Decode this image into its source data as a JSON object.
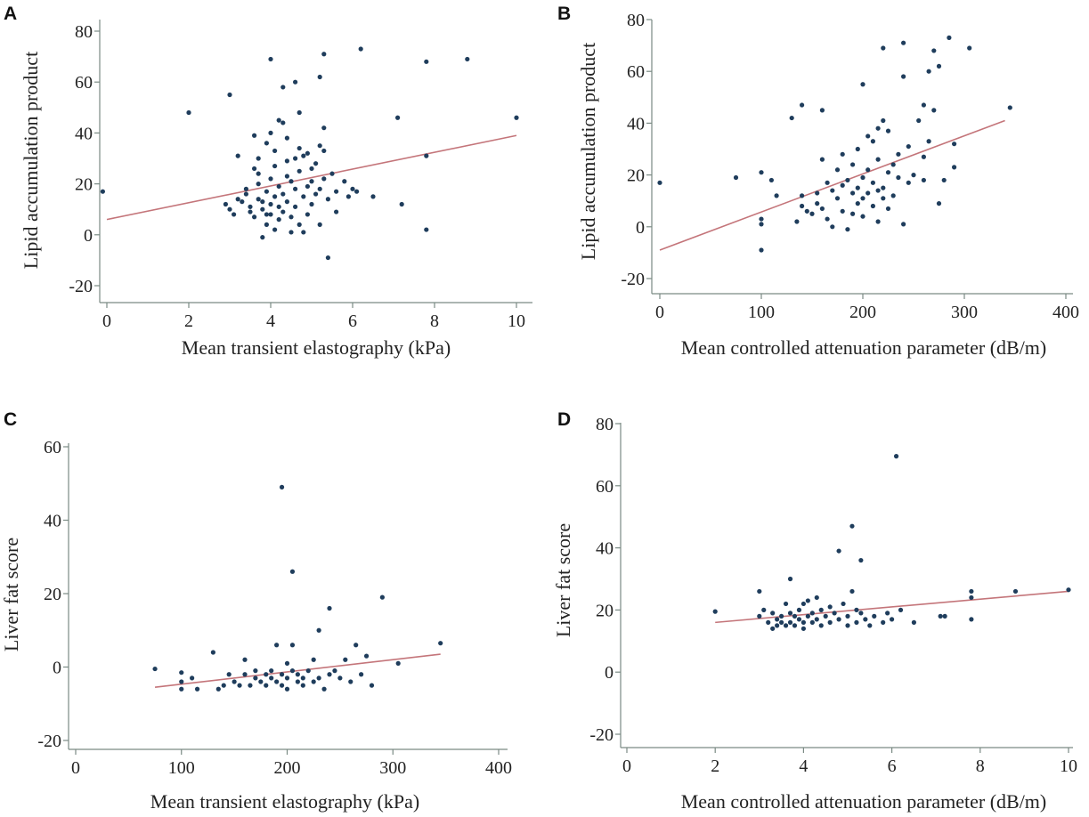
{
  "chart_data": [
    {
      "type": "scatter",
      "panel": "A",
      "xlabel": "Mean transient elastography (kPa)",
      "ylabel": "Lipid accumulation product",
      "xlim": [
        -0.3,
        10.3
      ],
      "ylim": [
        -23,
        84
      ],
      "xticks": [
        0,
        2,
        4,
        6,
        8,
        10
      ],
      "yticks": [
        80,
        60,
        40,
        20,
        0,
        -20
      ],
      "tick_labels_x": [
        "0",
        "2",
        "4",
        "6",
        "8",
        "10"
      ],
      "tick_labels_y": [
        "80",
        "60",
        "40",
        "20",
        "0",
        "-20"
      ],
      "fit_line": [
        [
          0,
          6
        ],
        [
          10,
          39
        ]
      ],
      "points": [
        [
          -0.1,
          17
        ],
        [
          2,
          48
        ],
        [
          3,
          55
        ],
        [
          3.2,
          31
        ],
        [
          2.9,
          12
        ],
        [
          3.0,
          10
        ],
        [
          3.1,
          8
        ],
        [
          3.2,
          14
        ],
        [
          3.3,
          13
        ],
        [
          3.4,
          16
        ],
        [
          3.4,
          18
        ],
        [
          3.5,
          11
        ],
        [
          3.5,
          9
        ],
        [
          3.6,
          39
        ],
        [
          3.6,
          26
        ],
        [
          3.6,
          7
        ],
        [
          3.7,
          30
        ],
        [
          3.7,
          24
        ],
        [
          3.7,
          20
        ],
        [
          3.7,
          14
        ],
        [
          3.8,
          -1
        ],
        [
          3.8,
          13
        ],
        [
          3.8,
          10
        ],
        [
          3.9,
          36
        ],
        [
          3.9,
          17
        ],
        [
          3.9,
          8
        ],
        [
          3.9,
          4
        ],
        [
          4.0,
          69
        ],
        [
          4.0,
          40
        ],
        [
          4.0,
          22
        ],
        [
          4.0,
          12
        ],
        [
          4.0,
          8
        ],
        [
          4.1,
          33
        ],
        [
          4.1,
          27
        ],
        [
          4.1,
          15
        ],
        [
          4.1,
          2
        ],
        [
          4.2,
          45
        ],
        [
          4.2,
          19
        ],
        [
          4.2,
          11
        ],
        [
          4.2,
          6
        ],
        [
          4.3,
          58
        ],
        [
          4.3,
          44
        ],
        [
          4.3,
          16
        ],
        [
          4.3,
          9
        ],
        [
          4.4,
          38
        ],
        [
          4.4,
          29
        ],
        [
          4.4,
          23
        ],
        [
          4.4,
          13
        ],
        [
          4.5,
          21
        ],
        [
          4.5,
          7
        ],
        [
          4.5,
          1
        ],
        [
          4.6,
          60
        ],
        [
          4.6,
          30
        ],
        [
          4.6,
          18
        ],
        [
          4.6,
          11
        ],
        [
          4.7,
          48
        ],
        [
          4.7,
          34
        ],
        [
          4.7,
          25
        ],
        [
          4.7,
          4
        ],
        [
          4.8,
          31
        ],
        [
          4.8,
          15
        ],
        [
          4.8,
          1
        ],
        [
          4.9,
          32
        ],
        [
          4.9,
          19
        ],
        [
          4.9,
          8
        ],
        [
          5.0,
          21
        ],
        [
          5.0,
          12
        ],
        [
          5.0,
          26
        ],
        [
          5.1,
          28
        ],
        [
          5.1,
          16
        ],
        [
          5.2,
          62
        ],
        [
          5.2,
          35
        ],
        [
          5.2,
          18
        ],
        [
          5.2,
          4
        ],
        [
          5.3,
          71
        ],
        [
          5.3,
          33
        ],
        [
          5.3,
          22
        ],
        [
          5.3,
          42
        ],
        [
          5.4,
          -9
        ],
        [
          5.4,
          14
        ],
        [
          5.5,
          24
        ],
        [
          5.6,
          17
        ],
        [
          5.6,
          9
        ],
        [
          5.8,
          21
        ],
        [
          5.9,
          15
        ],
        [
          6.0,
          18
        ],
        [
          6.1,
          17
        ],
        [
          6.2,
          73
        ],
        [
          6.5,
          15
        ],
        [
          7.1,
          46
        ],
        [
          7.2,
          12
        ],
        [
          7.8,
          68
        ],
        [
          7.8,
          31
        ],
        [
          7.8,
          2
        ],
        [
          8.8,
          69
        ],
        [
          10,
          46
        ]
      ]
    },
    {
      "type": "scatter",
      "panel": "B",
      "xlabel": "Mean controlled attenuation parameter (dB/m)",
      "ylabel": "Lipid accumulation product",
      "xlim": [
        -10,
        410
      ],
      "ylim": [
        -23,
        84
      ],
      "xticks": [
        0,
        100,
        200,
        300,
        400
      ],
      "yticks": [
        80,
        60,
        40,
        20,
        0,
        -20
      ],
      "tick_labels_x": [
        "0",
        "100",
        "200",
        "300",
        "400"
      ],
      "tick_labels_y": [
        "80",
        "60",
        "40",
        "20",
        "0",
        "-20"
      ],
      "fit_line": [
        [
          0,
          -9
        ],
        [
          340,
          41
        ]
      ],
      "points": [
        [
          0,
          17
        ],
        [
          75,
          19
        ],
        [
          100,
          -9
        ],
        [
          100,
          3
        ],
        [
          100,
          1
        ],
        [
          100,
          21
        ],
        [
          110,
          18
        ],
        [
          115,
          12
        ],
        [
          130,
          42
        ],
        [
          135,
          2
        ],
        [
          140,
          47
        ],
        [
          140,
          8
        ],
        [
          140,
          12
        ],
        [
          145,
          6
        ],
        [
          150,
          5
        ],
        [
          155,
          13
        ],
        [
          155,
          9
        ],
        [
          160,
          26
        ],
        [
          160,
          45
        ],
        [
          160,
          7
        ],
        [
          165,
          17
        ],
        [
          165,
          3
        ],
        [
          170,
          14
        ],
        [
          170,
          0
        ],
        [
          175,
          22
        ],
        [
          175,
          11
        ],
        [
          180,
          28
        ],
        [
          180,
          16
        ],
        [
          180,
          6
        ],
        [
          185,
          18
        ],
        [
          185,
          -1
        ],
        [
          190,
          24
        ],
        [
          190,
          13
        ],
        [
          190,
          5
        ],
        [
          195,
          30
        ],
        [
          195,
          15
        ],
        [
          195,
          9
        ],
        [
          200,
          55
        ],
        [
          200,
          19
        ],
        [
          200,
          11
        ],
        [
          200,
          4
        ],
        [
          205,
          35
        ],
        [
          205,
          22
        ],
        [
          205,
          13
        ],
        [
          210,
          33
        ],
        [
          210,
          17
        ],
        [
          210,
          8
        ],
        [
          215,
          38
        ],
        [
          215,
          26
        ],
        [
          215,
          14
        ],
        [
          215,
          2
        ],
        [
          220,
          41
        ],
        [
          220,
          15
        ],
        [
          220,
          11
        ],
        [
          220,
          69
        ],
        [
          225,
          37
        ],
        [
          225,
          21
        ],
        [
          225,
          7
        ],
        [
          230,
          24
        ],
        [
          230,
          12
        ],
        [
          235,
          28
        ],
        [
          235,
          19
        ],
        [
          240,
          58
        ],
        [
          240,
          71
        ],
        [
          240,
          1
        ],
        [
          245,
          31
        ],
        [
          245,
          17
        ],
        [
          250,
          20
        ],
        [
          255,
          41
        ],
        [
          260,
          47
        ],
        [
          260,
          18
        ],
        [
          260,
          27
        ],
        [
          265,
          60
        ],
        [
          265,
          33
        ],
        [
          270,
          68
        ],
        [
          270,
          45
        ],
        [
          275,
          62
        ],
        [
          275,
          9
        ],
        [
          280,
          18
        ],
        [
          285,
          73
        ],
        [
          290,
          23
        ],
        [
          290,
          32
        ],
        [
          305,
          69
        ],
        [
          345,
          46
        ]
      ]
    },
    {
      "type": "scatter",
      "panel": "C",
      "xlabel": "Mean transient elastography (kPa)",
      "ylabel": "Liver fat score",
      "xlim": [
        -10,
        410
      ],
      "ylim": [
        -23,
        63
      ],
      "xticks": [
        0,
        100,
        200,
        300,
        400
      ],
      "yticks": [
        60,
        40,
        20,
        0,
        -20
      ],
      "tick_labels_x": [
        "0",
        "100",
        "200",
        "300",
        "400"
      ],
      "tick_labels_y": [
        "60",
        "40",
        "20",
        "0",
        "-20"
      ],
      "fit_line": [
        [
          75,
          -5.5
        ],
        [
          345,
          3.5
        ]
      ],
      "points": [
        [
          75,
          -0.5
        ],
        [
          100,
          -1.5
        ],
        [
          100,
          -4
        ],
        [
          100,
          -6
        ],
        [
          110,
          -3
        ],
        [
          115,
          -6
        ],
        [
          130,
          4
        ],
        [
          135,
          -6
        ],
        [
          140,
          -5
        ],
        [
          145,
          -2
        ],
        [
          150,
          -4
        ],
        [
          155,
          -5
        ],
        [
          160,
          -2
        ],
        [
          160,
          2
        ],
        [
          165,
          -5
        ],
        [
          170,
          -3
        ],
        [
          170,
          -1
        ],
        [
          175,
          -4
        ],
        [
          180,
          -2
        ],
        [
          180,
          -5
        ],
        [
          185,
          -1
        ],
        [
          185,
          -3
        ],
        [
          190,
          -4
        ],
        [
          190,
          6
        ],
        [
          195,
          -2
        ],
        [
          195,
          -5
        ],
        [
          195,
          49
        ],
        [
          200,
          -3
        ],
        [
          200,
          1
        ],
        [
          200,
          -6
        ],
        [
          205,
          26
        ],
        [
          205,
          -1
        ],
        [
          205,
          6
        ],
        [
          210,
          -4
        ],
        [
          210,
          -2
        ],
        [
          215,
          -3
        ],
        [
          215,
          -5
        ],
        [
          220,
          -1
        ],
        [
          225,
          -4
        ],
        [
          225,
          2
        ],
        [
          230,
          10
        ],
        [
          230,
          -3
        ],
        [
          235,
          -6
        ],
        [
          240,
          16
        ],
        [
          240,
          -2
        ],
        [
          245,
          -1
        ],
        [
          250,
          -3
        ],
        [
          255,
          2
        ],
        [
          260,
          -4
        ],
        [
          265,
          6
        ],
        [
          270,
          -2
        ],
        [
          275,
          3
        ],
        [
          280,
          -5
        ],
        [
          290,
          19
        ],
        [
          305,
          1
        ],
        [
          345,
          6.5
        ]
      ]
    },
    {
      "type": "scatter",
      "panel": "D",
      "xlabel": "Mean controlled attenuation parameter (dB/m)",
      "ylabel": "Liver fat score",
      "xlim": [
        -0.3,
        10.1
      ],
      "ylim": [
        -22,
        82
      ],
      "xticks": [
        0,
        2,
        4,
        6,
        8,
        10
      ],
      "yticks": [
        80,
        60,
        40,
        20,
        0,
        -20
      ],
      "tick_labels_x": [
        "0",
        "2",
        "4",
        "6",
        "8",
        "10"
      ],
      "tick_labels_y": [
        "80",
        "60",
        "40",
        "20",
        "0",
        "-20"
      ],
      "fit_line": [
        [
          2,
          16
        ],
        [
          10,
          26
        ]
      ],
      "points": [
        [
          2,
          19.5
        ],
        [
          3,
          26
        ],
        [
          3,
          18
        ],
        [
          3.1,
          20
        ],
        [
          3.2,
          16
        ],
        [
          3.3,
          19
        ],
        [
          3.3,
          14
        ],
        [
          3.4,
          17
        ],
        [
          3.4,
          15
        ],
        [
          3.5,
          18
        ],
        [
          3.5,
          16
        ],
        [
          3.6,
          22
        ],
        [
          3.6,
          15
        ],
        [
          3.7,
          30
        ],
        [
          3.7,
          19
        ],
        [
          3.7,
          16
        ],
        [
          3.8,
          18
        ],
        [
          3.8,
          15
        ],
        [
          3.9,
          20
        ],
        [
          3.9,
          17
        ],
        [
          4.0,
          22
        ],
        [
          4.0,
          16
        ],
        [
          4.0,
          14
        ],
        [
          4.1,
          23
        ],
        [
          4.1,
          18
        ],
        [
          4.2,
          19
        ],
        [
          4.2,
          16
        ],
        [
          4.3,
          24
        ],
        [
          4.3,
          17
        ],
        [
          4.4,
          20
        ],
        [
          4.4,
          15
        ],
        [
          4.5,
          18
        ],
        [
          4.6,
          21
        ],
        [
          4.6,
          16
        ],
        [
          4.7,
          19
        ],
        [
          4.8,
          39
        ],
        [
          4.8,
          17
        ],
        [
          4.9,
          22
        ],
        [
          5.0,
          18
        ],
        [
          5.0,
          15
        ],
        [
          5.1,
          47
        ],
        [
          5.1,
          26
        ],
        [
          5.2,
          20
        ],
        [
          5.2,
          16
        ],
        [
          5.3,
          36
        ],
        [
          5.3,
          19
        ],
        [
          5.4,
          17
        ],
        [
          5.5,
          15
        ],
        [
          5.6,
          18
        ],
        [
          5.8,
          16
        ],
        [
          5.9,
          19
        ],
        [
          6.0,
          17
        ],
        [
          6.1,
          69.5
        ],
        [
          6.2,
          20
        ],
        [
          6.5,
          16
        ],
        [
          7.1,
          18
        ],
        [
          7.2,
          18
        ],
        [
          7.8,
          26
        ],
        [
          7.8,
          24
        ],
        [
          7.8,
          17
        ],
        [
          8.8,
          26
        ],
        [
          10,
          26.5
        ]
      ]
    }
  ]
}
